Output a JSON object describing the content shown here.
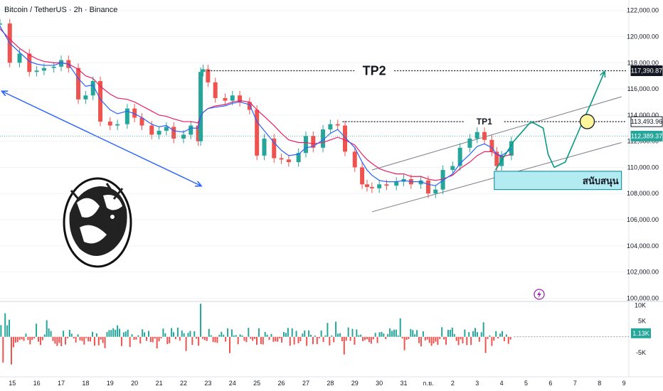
{
  "header": {
    "title": "Bitcoin / TetherUS · 2h · Binance"
  },
  "colors": {
    "up": "#26a69a",
    "down": "#ef5350",
    "ma_fast": "#2962ff",
    "ma_slow": "#e91e63",
    "arrow_blue": "#2962ff",
    "path_green": "#089981",
    "support_fill": "#b2ebf2",
    "grid": "#f0f3fa",
    "text": "#131722"
  },
  "chart_data": {
    "type": "candlestick",
    "symbol": "Bitcoin / TetherUS · 2h · Binance",
    "y_axis": {
      "ticks": [
        "122,000.00",
        "120,000.00",
        "118,000.00",
        "116,000.00",
        "114,000.00",
        "112,000.00",
        "110,000.00",
        "108,000.00",
        "106,000.00",
        "104,000.00",
        "102,000.00",
        "100,000.00"
      ],
      "tick_values": [
        122000,
        120000,
        118000,
        116000,
        114000,
        112000,
        110000,
        108000,
        106000,
        104000,
        102000,
        100000
      ],
      "range": [
        99800,
        122800
      ]
    },
    "x_axis": {
      "labels": [
        "15",
        "16",
        "17",
        "18",
        "19",
        "20",
        "21",
        "22",
        "23",
        "24",
        "25",
        "26",
        "27",
        "28",
        "29",
        "30",
        "31",
        "ก.ย.",
        "2",
        "3",
        "4",
        "5",
        "6",
        "7",
        "8",
        "9"
      ],
      "range": [
        14.5,
        40.2
      ]
    },
    "price_labels": [
      {
        "text": "117,390.87",
        "value": 117390.87,
        "style": "dark"
      },
      {
        "text": "113,493.96",
        "value": 113493.96,
        "style": "outline"
      },
      {
        "text": "112,389.37",
        "value": 112389.37,
        "style": "green"
      }
    ],
    "annotations": {
      "tp2": {
        "label": "TP2",
        "value": 117390.87,
        "x_start": 23.0,
        "x_end": 40.0
      },
      "tp1": {
        "label": "TP1",
        "value": 113493.96,
        "x_start": 28.5,
        "x_end": 40.0
      },
      "support": {
        "label": "สนับสนุน",
        "x_start": 34.7,
        "x_end": 39.9,
        "y_low": 108300,
        "y_high": 109700
      }
    },
    "channel": {
      "lower": [
        [
          29.7,
          106600
        ],
        [
          39.9,
          111900
        ]
      ],
      "upper": [
        [
          29.7,
          109800
        ],
        [
          39.9,
          115400
        ]
      ]
    },
    "trend_arrow": {
      "from": [
        14.6,
        115800
      ],
      "to": [
        22.7,
        108600
      ]
    },
    "projection_path": [
      [
        34.75,
        109800
      ],
      [
        35.5,
        112000
      ],
      [
        36.2,
        113500
      ],
      [
        36.7,
        113000
      ],
      [
        36.9,
        111000
      ],
      [
        37.15,
        110000
      ],
      [
        37.6,
        110400
      ],
      [
        38.2,
        113000
      ],
      [
        38.7,
        115100
      ],
      [
        39.2,
        117300
      ]
    ],
    "target_circle": {
      "x": 38.5,
      "y": 113500
    },
    "price_series": {
      "name": "BTCUSDT",
      "x": [
        14.5,
        14.9,
        15.3,
        15.7,
        16.0,
        16.3,
        16.7,
        17.0,
        17.3,
        17.7,
        18.0,
        18.3,
        18.6,
        19.0,
        19.3,
        19.7,
        20.0,
        20.3,
        20.7,
        21.0,
        21.3,
        21.6,
        22.0,
        22.3,
        22.6,
        22.7,
        22.8,
        23.0,
        23.3,
        23.7,
        24.0,
        24.3,
        24.7,
        25.0,
        25.3,
        25.7,
        26.0,
        26.3,
        26.7,
        27.0,
        27.3,
        27.7,
        28.0,
        28.3,
        28.6,
        29.0,
        29.3,
        29.5,
        29.7,
        30.0,
        30.3,
        30.7,
        31.0,
        31.3,
        31.7,
        32.0,
        32.3,
        32.6,
        33.0,
        33.3,
        33.7,
        34.0,
        34.3,
        34.6,
        34.8,
        35.0,
        35.4
      ],
      "close": [
        121000,
        118000,
        118700,
        117300,
        117400,
        117600,
        117700,
        118200,
        117600,
        115200,
        115500,
        116600,
        113500,
        113200,
        113300,
        114500,
        113800,
        113200,
        112500,
        112800,
        113100,
        112200,
        112500,
        113200,
        112000,
        117300,
        117500,
        116500,
        115300,
        115100,
        115500,
        115000,
        114400,
        110900,
        112200,
        110700,
        110600,
        110400,
        111100,
        112400,
        111500,
        112900,
        113300,
        113200,
        111200,
        110000,
        108700,
        108500,
        108400,
        108700,
        108600,
        108900,
        109100,
        108700,
        109000,
        108000,
        108300,
        109800,
        110100,
        111500,
        112200,
        112700,
        112100,
        111200,
        110100,
        110900,
        112000
      ],
      "ma_fast": [
        120800,
        119500,
        118800,
        118100,
        117900,
        117800,
        117800,
        118000,
        117900,
        116800,
        116200,
        116300,
        115200,
        114400,
        114100,
        114300,
        114100,
        113800,
        113300,
        113100,
        113200,
        112800,
        112700,
        113000,
        113000,
        113900,
        114200,
        114500,
        114600,
        114700,
        114900,
        115000,
        114800,
        113500,
        112800,
        111900,
        111300,
        110900,
        111000,
        111500,
        111600,
        112100,
        112600,
        112900,
        112300,
        111500,
        110400,
        109800,
        109400,
        109000,
        108900,
        108900,
        109000,
        108900,
        108900,
        108700,
        108600,
        109000,
        109500,
        110300,
        111000,
        111600,
        111800,
        111500,
        111000,
        110900,
        111400
      ],
      "ma_slow": [
        120600,
        119800,
        119100,
        118600,
        118300,
        118100,
        118000,
        118000,
        117900,
        117500,
        117000,
        116800,
        116200,
        115600,
        115300,
        115200,
        115000,
        114700,
        114300,
        114000,
        113900,
        113700,
        113500,
        113500,
        113400,
        113900,
        114200,
        114500,
        114700,
        114800,
        115000,
        115100,
        115000,
        114400,
        113900,
        113200,
        112600,
        112100,
        111900,
        111900,
        111800,
        111900,
        112100,
        112300,
        112100,
        111700,
        111000,
        110600,
        110300,
        109900,
        109700,
        109500,
        109500,
        109300,
        109300,
        109100,
        109000,
        109100,
        109400,
        109900,
        110400,
        110900,
        111200,
        111200,
        111000,
        110800,
        111000
      ]
    },
    "volume": {
      "axis_ticks": [
        "10K",
        "5K",
        "-5K"
      ],
      "tick_values": [
        10000,
        5000,
        -5000
      ],
      "range": [
        -12000,
        11000
      ],
      "current_label": "1.13K"
    }
  }
}
